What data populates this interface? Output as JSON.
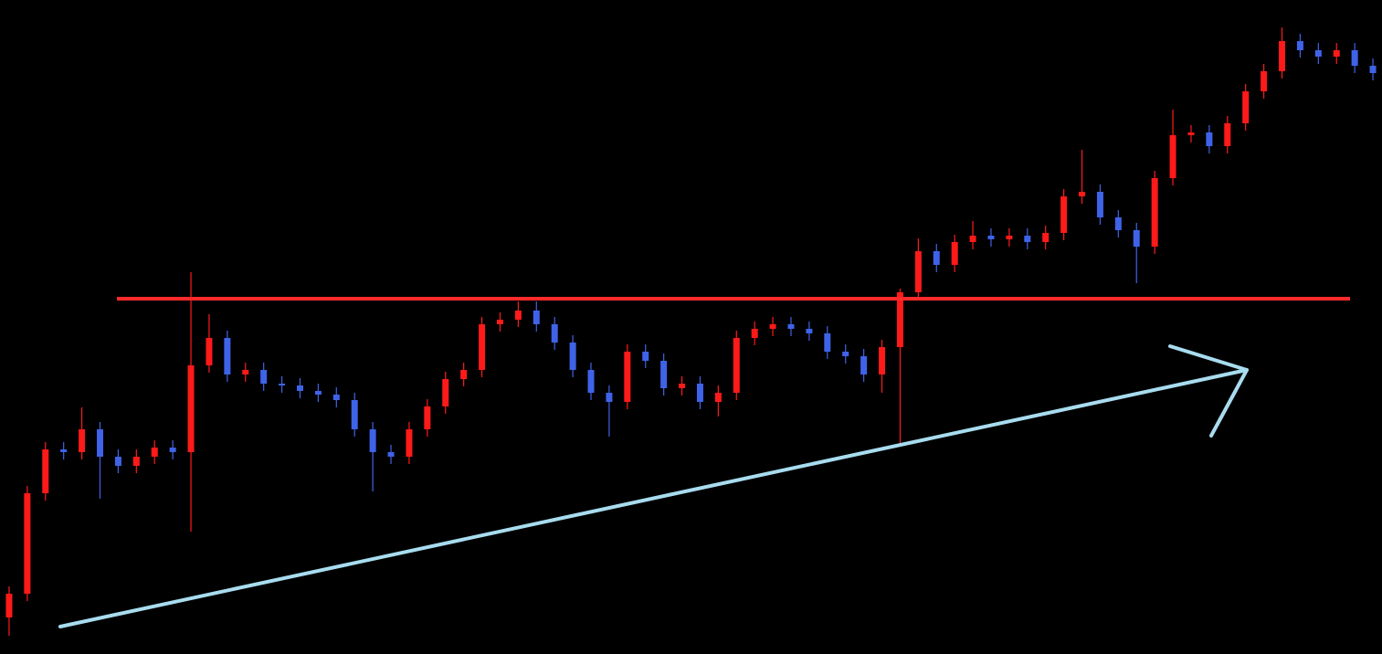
{
  "chart_data": {
    "type": "candlestick",
    "ylim": [
      0,
      716
    ],
    "up_color": "#ff1a1a",
    "down_color": "#3f63e8",
    "open": [
      40,
      66,
      176,
      224,
      221,
      246,
      216,
      206,
      216,
      226,
      221,
      316,
      346,
      306,
      311,
      296,
      294,
      288,
      284,
      278,
      246,
      221,
      216,
      246,
      271,
      301,
      311,
      361,
      366,
      376,
      361,
      341,
      311,
      286,
      276,
      331,
      321,
      291,
      296,
      276,
      286,
      346,
      356,
      361,
      356,
      351,
      331,
      326,
      306,
      336,
      396,
      441,
      426,
      451,
      458,
      454,
      458,
      451,
      461,
      501,
      506,
      478,
      464,
      446,
      521,
      568,
      571,
      556,
      581,
      616,
      638,
      671,
      661,
      654,
      661,
      644
    ],
    "high": [
      74,
      184,
      232,
      232,
      270,
      254,
      224,
      224,
      234,
      234,
      418,
      372,
      354,
      319,
      319,
      304,
      302,
      296,
      292,
      286,
      254,
      229,
      254,
      279,
      309,
      319,
      369,
      374,
      386,
      386,
      369,
      349,
      319,
      294,
      339,
      339,
      329,
      304,
      304,
      294,
      354,
      364,
      369,
      369,
      364,
      359,
      339,
      334,
      344,
      400,
      455,
      449,
      459,
      474,
      466,
      466,
      466,
      469,
      509,
      552,
      514,
      486,
      472,
      529,
      596,
      579,
      579,
      589,
      624,
      646,
      686,
      679,
      669,
      669,
      669,
      652
    ],
    "low": [
      20,
      58,
      168,
      213,
      213,
      170,
      198,
      198,
      208,
      213,
      134,
      308,
      298,
      298,
      288,
      286,
      280,
      276,
      270,
      238,
      178,
      208,
      208,
      238,
      263,
      293,
      303,
      353,
      358,
      353,
      333,
      303,
      278,
      238,
      268,
      313,
      283,
      283,
      268,
      260,
      278,
      338,
      348,
      348,
      343,
      323,
      318,
      298,
      286,
      230,
      388,
      418,
      418,
      443,
      446,
      446,
      443,
      443,
      453,
      493,
      470,
      456,
      406,
      438,
      513,
      560,
      548,
      548,
      573,
      608,
      630,
      653,
      646,
      646,
      636,
      628
    ],
    "close": [
      66,
      176,
      224,
      221,
      246,
      216,
      206,
      216,
      226,
      221,
      316,
      346,
      306,
      311,
      296,
      294,
      288,
      284,
      278,
      246,
      221,
      216,
      246,
      271,
      301,
      311,
      361,
      366,
      376,
      361,
      341,
      311,
      286,
      276,
      331,
      321,
      291,
      296,
      276,
      286,
      346,
      356,
      361,
      356,
      351,
      331,
      326,
      306,
      336,
      396,
      441,
      426,
      451,
      458,
      454,
      458,
      451,
      461,
      501,
      506,
      478,
      464,
      446,
      521,
      568,
      571,
      556,
      581,
      616,
      638,
      671,
      661,
      654,
      661,
      644,
      636
    ]
  }
}
